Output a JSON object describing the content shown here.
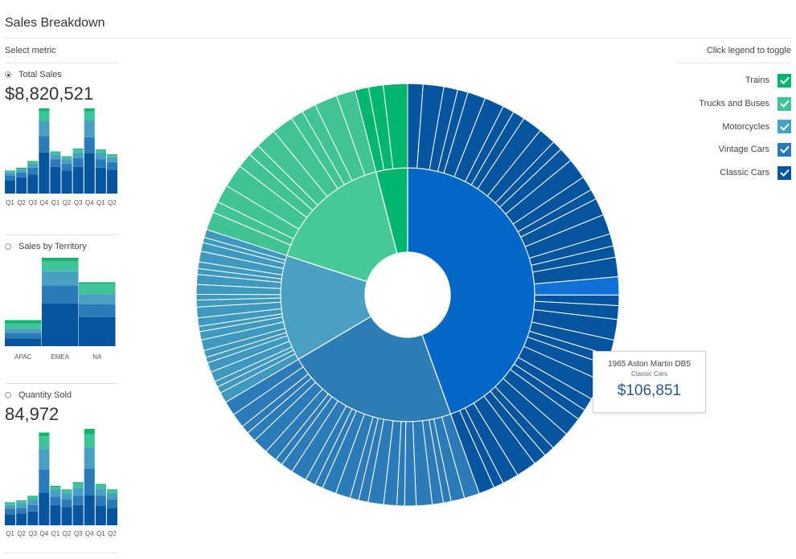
{
  "header": {
    "title": "Sales Breakdown"
  },
  "left": {
    "select_label": "Select metric",
    "metrics": [
      {
        "label": "Total Sales",
        "selected": true,
        "value": "$8,820,521"
      },
      {
        "label": "Sales by Territory",
        "selected": false,
        "value": ""
      },
      {
        "label": "Quantity Sold",
        "selected": false,
        "value": "84,972"
      }
    ]
  },
  "legend": {
    "hint": "Click legend to toggle",
    "items": [
      {
        "label": "Trains",
        "color": "#00b56e",
        "checked": true
      },
      {
        "label": "Trucks and Buses",
        "color": "#40c495",
        "checked": true
      },
      {
        "label": "Motorcycles",
        "color": "#47a1c3",
        "checked": true
      },
      {
        "label": "Vintage Cars",
        "color": "#2b7bb9",
        "checked": true
      },
      {
        "label": "Classic Cars",
        "color": "#05549e",
        "checked": true
      }
    ]
  },
  "tooltip": {
    "name": "1965 Aston Martin DB5",
    "category": "Classic Cars",
    "value": "$106,851"
  },
  "chart_data": [
    {
      "type": "bar",
      "stacked": true,
      "categories": [
        "Q1",
        "Q2",
        "Q3",
        "Q4",
        "Q1",
        "Q2",
        "Q3",
        "Q4",
        "Q1",
        "Q2"
      ],
      "series": [
        {
          "name": "Classic Cars",
          "values": [
            14,
            17,
            20,
            43,
            28,
            24,
            28,
            42,
            27,
            25
          ]
        },
        {
          "name": "Vintage Cars",
          "values": [
            5,
            5,
            7,
            17,
            8,
            7,
            9,
            17,
            9,
            8
          ]
        },
        {
          "name": "Motorcycles",
          "values": [
            3,
            3,
            4,
            16,
            5,
            5,
            6,
            17,
            6,
            5
          ]
        },
        {
          "name": "Trucks and Buses",
          "values": [
            1,
            1,
            2,
            10,
            2,
            2,
            3,
            10,
            3,
            2
          ]
        },
        {
          "name": "Trains",
          "values": [
            1,
            1,
            1,
            3,
            1,
            1,
            1,
            3,
            1,
            1
          ]
        }
      ]
    },
    {
      "type": "bar",
      "stacked": true,
      "categories": [
        "APAC",
        "EMEA",
        "NA"
      ],
      "series": [
        {
          "name": "Classic Cars",
          "values": [
            10,
            54,
            37
          ]
        },
        {
          "name": "Vintage Cars",
          "values": [
            7,
            23,
            16
          ]
        },
        {
          "name": "Motorcycles",
          "values": [
            5,
            18,
            13
          ]
        },
        {
          "name": "Trucks and Buses",
          "values": [
            7,
            13,
            13
          ]
        },
        {
          "name": "Trains",
          "values": [
            4,
            4,
            2
          ]
        }
      ]
    },
    {
      "type": "bar",
      "stacked": true,
      "categories": [
        "Q1",
        "Q2",
        "Q3",
        "Q4",
        "Q1",
        "Q2",
        "Q3",
        "Q4",
        "Q1",
        "Q2"
      ],
      "series": [
        {
          "name": "Classic Cars",
          "values": [
            12,
            13,
            15,
            35,
            22,
            20,
            22,
            33,
            21,
            19
          ]
        },
        {
          "name": "Vintage Cars",
          "values": [
            6,
            6,
            7,
            26,
            9,
            8,
            10,
            29,
            11,
            9
          ]
        },
        {
          "name": "Motorcycles",
          "values": [
            4,
            5,
            6,
            22,
            8,
            7,
            9,
            23,
            8,
            7
          ]
        },
        {
          "name": "Trucks and Buses",
          "values": [
            2,
            2,
            3,
            14,
            3,
            3,
            5,
            14,
            4,
            3
          ]
        },
        {
          "name": "Trains",
          "values": [
            1,
            1,
            1,
            4,
            1,
            1,
            1,
            6,
            1,
            1
          ]
        }
      ]
    },
    {
      "type": "sunburst",
      "inner": [
        {
          "name": "Classic Cars",
          "share": 0.445,
          "color": "#0367c7"
        },
        {
          "name": "Vintage Cars",
          "share": 0.22,
          "color": "#2c7cb6"
        },
        {
          "name": "Motorcycles",
          "share": 0.135,
          "color": "#4aa0c3"
        },
        {
          "name": "Trucks and Buses",
          "share": 0.16,
          "color": "#46c997"
        },
        {
          "name": "Trains",
          "share": 0.04,
          "color": "#00b56e"
        }
      ],
      "outer_counts": [
        38,
        24,
        22,
        12,
        3
      ],
      "outer_colors": [
        "#05549e",
        "#2b7bb9",
        "#3e98c0",
        "#40c495",
        "#00b56e"
      ],
      "highlight": {
        "series": "Classic Cars",
        "index": 20
      }
    }
  ]
}
